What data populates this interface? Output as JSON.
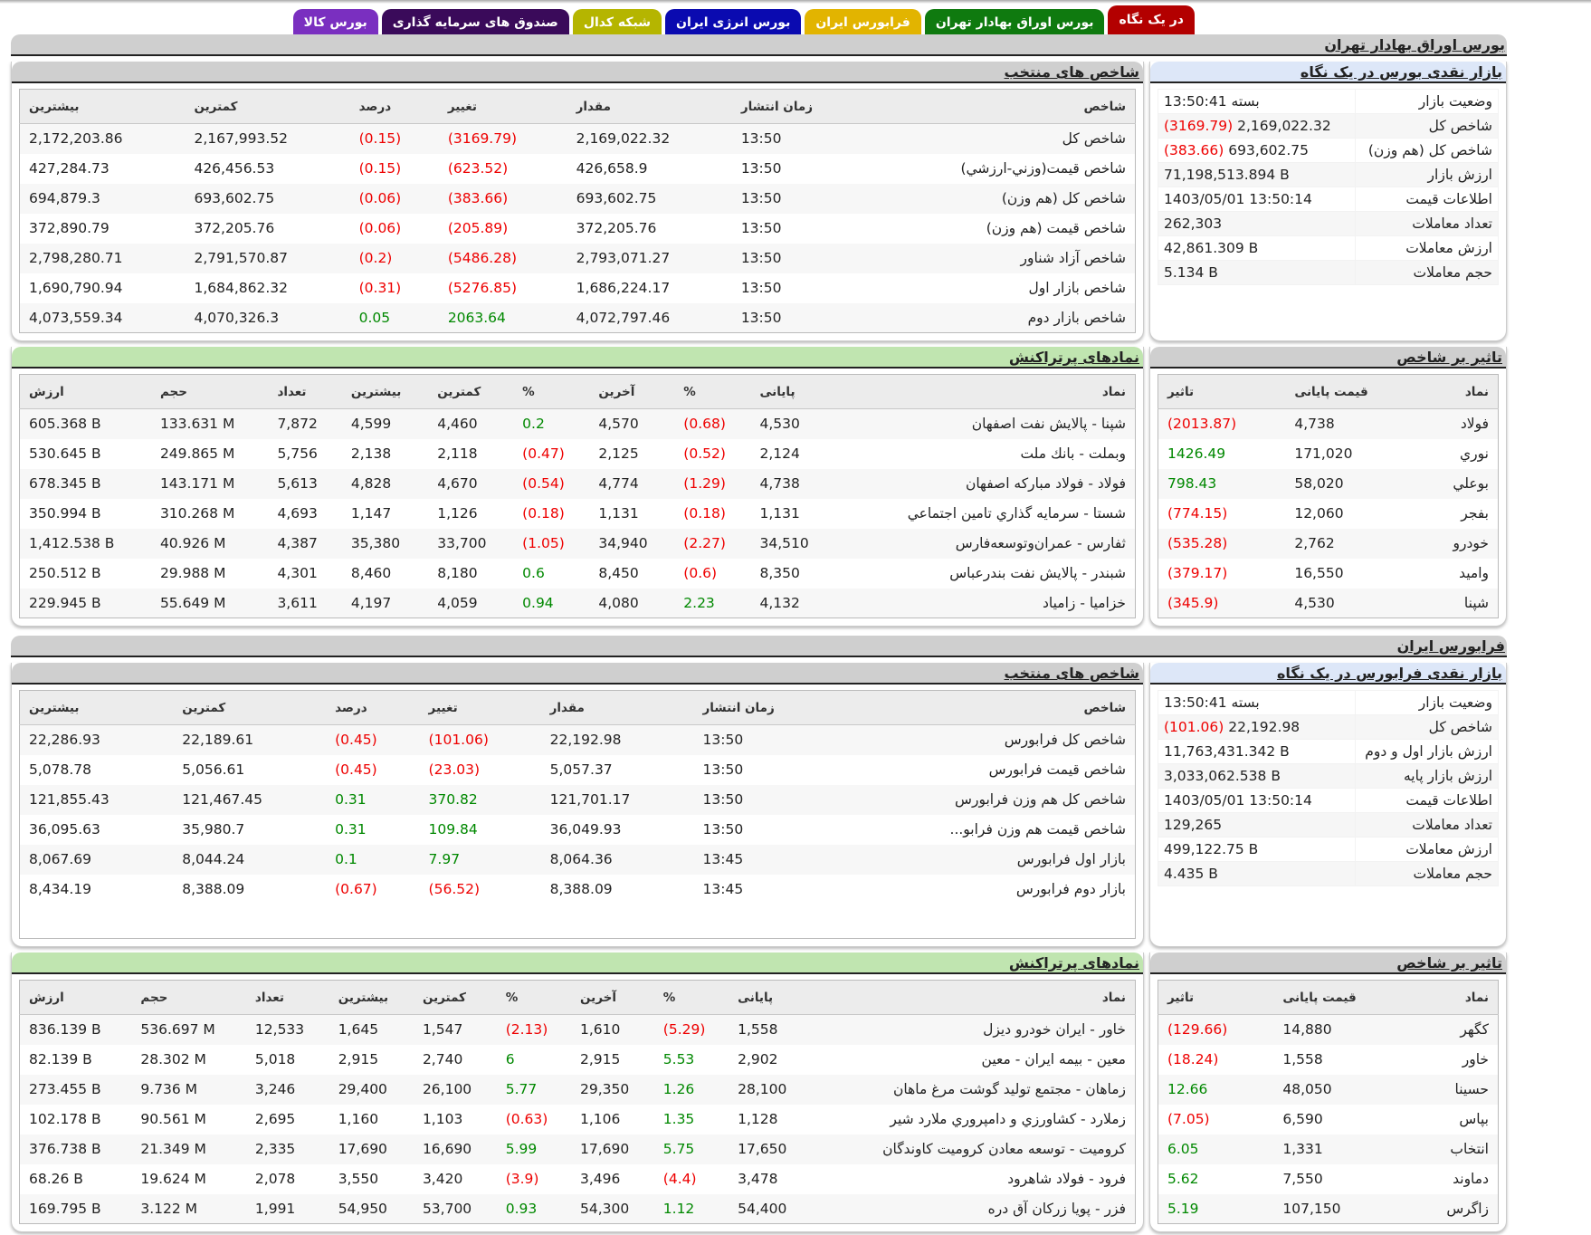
{
  "tabs": [
    {
      "label": "در یک نگاه",
      "bg": "#b30000",
      "fg": "#ffffff",
      "active": true
    },
    {
      "label": "بورس اوراق بهادار تهران",
      "bg": "#0f7a0f",
      "fg": "#ffffff"
    },
    {
      "label": "فرابورس ایران",
      "bg": "#e2b400",
      "fg": "#ffffff"
    },
    {
      "label": "بورس انرژی ایران",
      "bg": "#0a0ab0",
      "fg": "#ffffff"
    },
    {
      "label": "شبکه کدال",
      "bg": "#b5b500",
      "fg": "#ffffff"
    },
    {
      "label": "صندوق های سرمایه گذاری",
      "bg": "#3a0a5a",
      "fg": "#ffffff"
    },
    {
      "label": "بورس کالا",
      "bg": "#7a2fc0",
      "fg": "#ffffff"
    }
  ],
  "colors": {
    "negative": "#ee0000",
    "positive": "#008800"
  },
  "tse": {
    "title": "بورس اوراق بهادار تهران",
    "glance": {
      "title": "بازار نقدی بورس در یک نگاه",
      "rows": [
        {
          "k": "وضعیت بازار",
          "v": "بسته 13:50:41"
        },
        {
          "k": "شاخص کل",
          "v": "2,169,022.32",
          "chg": "(3169.79)"
        },
        {
          "k": "شاخص کل (هم وزن)",
          "v": "693,602.75",
          "chg": "(383.66)"
        },
        {
          "k": "ارزش بازار",
          "v": "71,198,513.894 B"
        },
        {
          "k": "اطلاعات قیمت",
          "v": "1403/05/01 13:50:14"
        },
        {
          "k": "تعداد معاملات",
          "v": "262,303"
        },
        {
          "k": "ارزش معاملات",
          "v": "42,861.309 B"
        },
        {
          "k": "حجم معاملات",
          "v": "5.134 B"
        }
      ]
    },
    "indices": {
      "title": "شاخص های منتخب",
      "headers": [
        "شاخص",
        "زمان انتشار",
        "مقدار",
        "تغییر",
        "درصد",
        "کمترین",
        "بیشترین"
      ],
      "rows": [
        [
          "شاخص کل",
          "13:50",
          "2,169,022.32",
          "(3169.79)",
          "(0.15)",
          "2,167,993.52",
          "2,172,203.86"
        ],
        [
          "شاخص قیمت(وزني-ارزشي)",
          "13:50",
          "426,658.9",
          "(623.52)",
          "(0.15)",
          "426,456.53",
          "427,284.73"
        ],
        [
          "شاخص کل (هم وزن)",
          "13:50",
          "693,602.75",
          "(383.66)",
          "(0.06)",
          "693,602.75",
          "694,879.3"
        ],
        [
          "شاخص قیمت (هم وزن)",
          "13:50",
          "372,205.76",
          "(205.89)",
          "(0.06)",
          "372,205.76",
          "372,890.79"
        ],
        [
          "شاخص آزاد شناور",
          "13:50",
          "2,793,071.27",
          "(5486.28)",
          "(0.2)",
          "2,791,570.87",
          "2,798,280.71"
        ],
        [
          "شاخص بازار اول",
          "13:50",
          "1,686,224.17",
          "(5276.85)",
          "(0.31)",
          "1,684,862.32",
          "1,690,790.94"
        ],
        [
          "شاخص بازار دوم",
          "13:50",
          "4,072,797.46",
          "2063.64",
          "0.05",
          "4,070,326.3",
          "4,073,559.34"
        ]
      ]
    },
    "impact": {
      "title": "تاثیر بر شاخص",
      "headers": [
        "نماد",
        "قیمت پایانی",
        "تاثیر"
      ],
      "rows": [
        [
          "فولاد",
          "4,738",
          "(2013.87)"
        ],
        [
          "نوري",
          "171,020",
          "1426.49"
        ],
        [
          "بوعلي",
          "58,020",
          "798.43"
        ],
        [
          "بفجر",
          "12,060",
          "(774.15)"
        ],
        [
          "خودرو",
          "2,762",
          "(535.28)"
        ],
        [
          "واميد",
          "16,550",
          "(379.17)"
        ],
        [
          "شپنا",
          "4,530",
          "(345.9)"
        ]
      ]
    },
    "active": {
      "title": "نمادهای پرتراکنش",
      "headers": [
        "نماد",
        "پایانی",
        "%",
        "آخرین",
        "%",
        "کمترین",
        "بیشترین",
        "تعداد",
        "حجم",
        "ارزش"
      ],
      "rows": [
        [
          "شپنا - پالایش نفت اصفهان",
          "4,530",
          "(0.68)",
          "4,570",
          "0.2",
          "4,460",
          "4,599",
          "7,872",
          "133.631 M",
          "605.368 B"
        ],
        [
          "وبملت - بانك ملت",
          "2,124",
          "(0.52)",
          "2,125",
          "(0.47)",
          "2,118",
          "2,138",
          "5,756",
          "249.865 M",
          "530.645 B"
        ],
        [
          "فولاد - فولاد مباركه اصفهان",
          "4,738",
          "(1.29)",
          "4,774",
          "(0.54)",
          "4,670",
          "4,828",
          "5,613",
          "143.171 M",
          "678.345 B"
        ],
        [
          "شستا - سرمايه گذاري تامين اجتماعي",
          "1,131",
          "(0.18)",
          "1,131",
          "(0.18)",
          "1,126",
          "1,147",
          "4,693",
          "310.268 M",
          "350.994 B"
        ],
        [
          "ثفارس - عمران‌وتوسعه‌فارس",
          "34,510",
          "(2.27)",
          "34,940",
          "(1.05)",
          "33,700",
          "35,380",
          "4,387",
          "40.926 M",
          "1,412.538 B"
        ],
        [
          "شبندر - پالایش نفت بندرعباس",
          "8,350",
          "(0.6)",
          "8,450",
          "0.6",
          "8,180",
          "8,460",
          "4,301",
          "29.988 M",
          "250.512 B"
        ],
        [
          "خزامیا - زامیاد",
          "4,132",
          "2.23",
          "4,080",
          "0.94",
          "4,059",
          "4,197",
          "3,611",
          "55.649 M",
          "229.945 B"
        ]
      ]
    }
  },
  "ifb": {
    "title": "فرابورس ایران",
    "glance": {
      "title": "بازار نقدی فرابورس در یک نگاه",
      "rows": [
        {
          "k": "وضعیت بازار",
          "v": "بسته 13:50:41"
        },
        {
          "k": "شاخص کل",
          "v": "22,192.98",
          "chg": "(101.06)"
        },
        {
          "k": "ارزش بازار اول و دوم",
          "v": "11,763,431.342 B"
        },
        {
          "k": "ارزش بازار پایه",
          "v": "3,033,062.538 B"
        },
        {
          "k": "اطلاعات قیمت",
          "v": "1403/05/01 13:50:14"
        },
        {
          "k": "تعداد معاملات",
          "v": "129,265"
        },
        {
          "k": "ارزش معاملات",
          "v": "499,122.75 B"
        },
        {
          "k": "حجم معاملات",
          "v": "4.435 B"
        }
      ]
    },
    "indices": {
      "title": "شاخص های منتخب",
      "headers": [
        "شاخص",
        "زمان انتشار",
        "مقدار",
        "تغییر",
        "درصد",
        "کمترین",
        "بیشترین"
      ],
      "rows": [
        [
          "شاخص کل فرابورس",
          "13:50",
          "22,192.98",
          "(101.06)",
          "(0.45)",
          "22,189.61",
          "22,286.93"
        ],
        [
          "شاخص قیمت فرابورس",
          "13:50",
          "5,057.37",
          "(23.03)",
          "(0.45)",
          "5,056.61",
          "5,078.78"
        ],
        [
          "شاخص کل هم وزن فرابورس",
          "13:50",
          "121,701.17",
          "370.82",
          "0.31",
          "121,467.45",
          "121,855.43"
        ],
        [
          "شاخص قیمت هم وزن فرابو...",
          "13:50",
          "36,049.93",
          "109.84",
          "0.31",
          "35,980.7",
          "36,095.63"
        ],
        [
          "بازار اول فرابورس",
          "13:45",
          "8,064.36",
          "7.97",
          "0.1",
          "8,044.24",
          "8,067.69"
        ],
        [
          "بازار دوم فرابورس",
          "13:45",
          "8,388.09",
          "(56.52)",
          "(0.67)",
          "8,388.09",
          "8,434.19"
        ]
      ]
    },
    "impact": {
      "title": "تاثیر بر شاخص",
      "headers": [
        "نماد",
        "قیمت پایانی",
        "تاثیر"
      ],
      "rows": [
        [
          "كگهر",
          "14,880",
          "(129.66)"
        ],
        [
          "خاور",
          "1,558",
          "(18.24)"
        ],
        [
          "حسينا",
          "48,050",
          "12.66"
        ],
        [
          "بپاس",
          "6,590",
          "(7.05)"
        ],
        [
          "انتخاب",
          "1,331",
          "6.05"
        ],
        [
          "دماوند",
          "7,550",
          "5.62"
        ],
        [
          "زاگرس",
          "107,150",
          "5.19"
        ]
      ]
    },
    "active": {
      "title": "نمادهای پرتراکنش",
      "headers": [
        "نماد",
        "پایانی",
        "%",
        "آخرین",
        "%",
        "کمترین",
        "بیشترین",
        "تعداد",
        "حجم",
        "ارزش"
      ],
      "rows": [
        [
          "خاور - ايران خودرو ديزل",
          "1,558",
          "(5.29)",
          "1,610",
          "(2.13)",
          "1,547",
          "1,645",
          "12,533",
          "536.697 M",
          "836.139 B"
        ],
        [
          "معين - بیمه ایران - معین",
          "2,902",
          "5.53",
          "2,915",
          "6",
          "2,740",
          "2,915",
          "5,018",
          "28.302 M",
          "82.139 B"
        ],
        [
          "زماهان - مجتمع توليد گوشت مرغ ماهان",
          "28,100",
          "1.26",
          "29,350",
          "5.77",
          "26,100",
          "29,400",
          "3,246",
          "9.736 M",
          "273.455 B"
        ],
        [
          "زملارد - كشاورزي و دامپروري ملارد شير",
          "1,128",
          "1.35",
          "1,106",
          "(0.63)",
          "1,103",
          "1,160",
          "2,695",
          "90.561 M",
          "102.178 B"
        ],
        [
          "كرومیت - توسعه معادن كروميت كاوندگان",
          "17,650",
          "5.75",
          "17,690",
          "5.99",
          "16,690",
          "17,690",
          "2,335",
          "21.349 M",
          "376.738 B"
        ],
        [
          "فرود - فولاد شاهرود",
          "3,478",
          "(4.4)",
          "3,496",
          "(3.9)",
          "3,420",
          "3,550",
          "2,078",
          "19.624 M",
          "68.26 B"
        ],
        [
          "فزر - پویا زرکان آق دره",
          "54,400",
          "1.12",
          "54,300",
          "0.93",
          "53,700",
          "54,950",
          "1,991",
          "3.122 M",
          "169.795 B"
        ]
      ]
    }
  }
}
